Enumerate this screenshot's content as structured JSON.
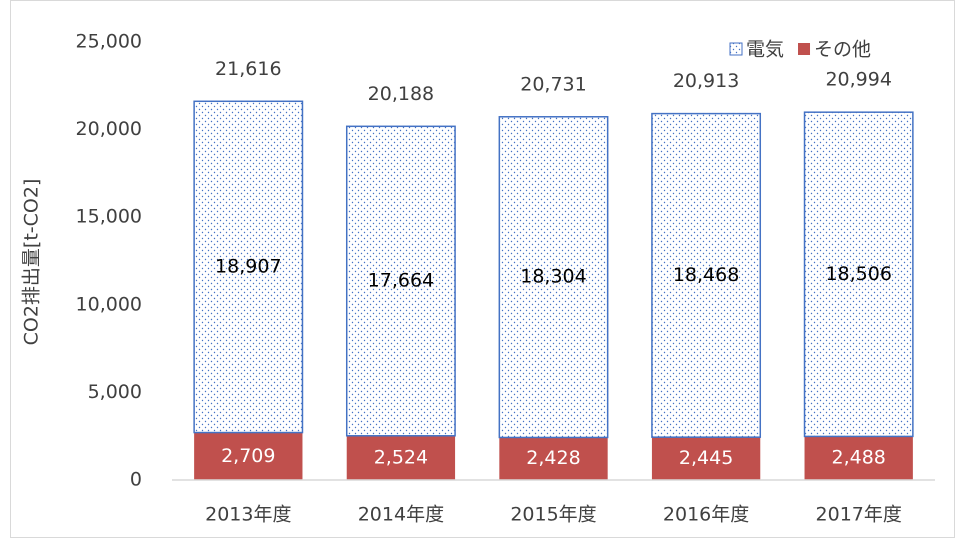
{
  "chart_data": {
    "type": "stacked_bar",
    "y_label": "CO2排出量[t-CO2]",
    "categories": [
      "2013年度",
      "2014年度",
      "2015年度",
      "2016年度",
      "2017年度"
    ],
    "series": [
      {
        "name": "その他",
        "color": "#c0504d",
        "fill": "solid",
        "values": [
          2709,
          2524,
          2428,
          2445,
          2488
        ],
        "value_labels": [
          "2,709",
          "2,524",
          "2,428",
          "2,445",
          "2,488"
        ]
      },
      {
        "name": "電気",
        "color": "#4472c4",
        "fill": "dots",
        "values": [
          18907,
          17664,
          18304,
          18468,
          18506
        ],
        "value_labels": [
          "18,907",
          "17,664",
          "18,304",
          "18,468",
          "18,506"
        ]
      }
    ],
    "totals": [
      21616,
      20188,
      20731,
      20913,
      20994
    ],
    "total_labels": [
      "21,616",
      "20,188",
      "20,731",
      "20,913",
      "20,994"
    ],
    "ylim": [
      0,
      25000
    ],
    "yticks": [
      0,
      {
        "value": 5000,
        "label": "5,000"
      },
      {
        "value": 10000,
        "label": "10,000"
      },
      {
        "value": 15000,
        "label": "15,000"
      },
      {
        "value": 20000,
        "label": "20,000"
      },
      {
        "value": 25000,
        "label": "25,000"
      }
    ],
    "grid": false,
    "legend": "top-right"
  }
}
